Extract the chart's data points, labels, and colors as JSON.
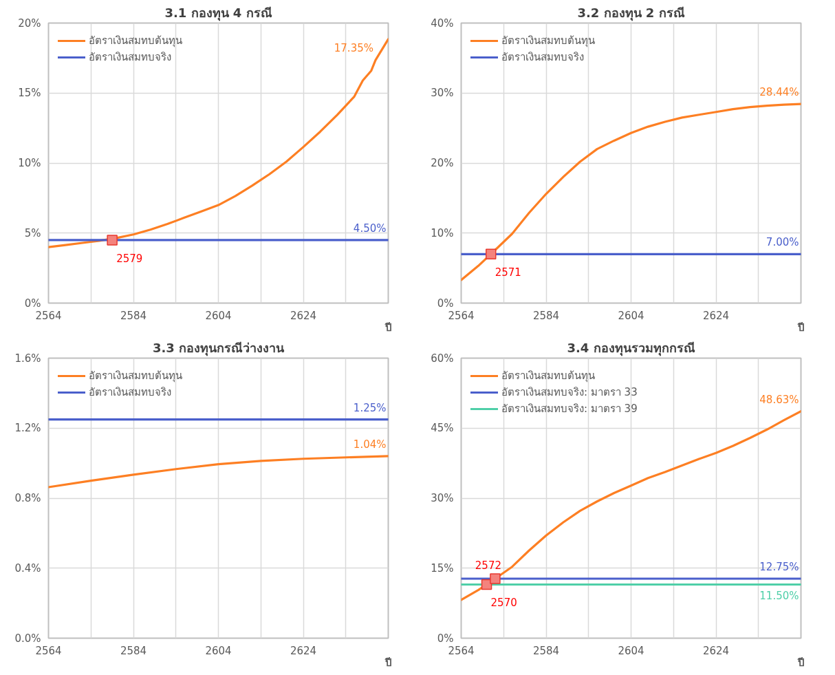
{
  "chart_data": [
    {
      "type": "line",
      "title": "3.1 กองทุน 4 กรณี",
      "xlabel": "ปี",
      "xlim": [
        2564,
        2644
      ],
      "ylim": [
        0,
        20
      ],
      "xticks": [
        2564,
        {
          "value": 2574,
          "label": null
        },
        2584,
        {
          "value": 2594,
          "label": null
        },
        2604,
        {
          "value": 2614,
          "label": null
        },
        2624,
        {
          "value": 2634,
          "label": null
        },
        {
          "value": 2644,
          "label": null
        }
      ],
      "yticks": [
        {
          "value": 0,
          "label": "0%"
        },
        {
          "value": 5,
          "label": "5%"
        },
        {
          "value": 10,
          "label": "10%"
        },
        {
          "value": 15,
          "label": "15%"
        },
        {
          "value": 20,
          "label": "20%"
        }
      ],
      "grid": true,
      "legend": "top left",
      "series": [
        {
          "name": "อัตราเงินสมทบต้นทุน",
          "color": "#fd7f23",
          "x": [
            2564,
            2568,
            2572,
            2576,
            2580,
            2584,
            2588,
            2592,
            2596,
            2600,
            2604,
            2608,
            2612,
            2616,
            2620,
            2624,
            2628,
            2632,
            2636,
            2638,
            2640,
            2641,
            2644
          ],
          "values": [
            4.0,
            4.15,
            4.3,
            4.45,
            4.65,
            4.9,
            5.25,
            5.65,
            6.1,
            6.55,
            7.0,
            7.65,
            8.4,
            9.2,
            10.1,
            11.15,
            12.25,
            13.45,
            14.75,
            15.9,
            16.6,
            17.35,
            18.85
          ],
          "value_labels": [
            null,
            null,
            null,
            null,
            null,
            null,
            null,
            null,
            null,
            null,
            null,
            null,
            null,
            null,
            null,
            null,
            null,
            null,
            null,
            null,
            null,
            "17.35%",
            null
          ]
        },
        {
          "name": "อัตราเงินสมทบจริง",
          "color": "#4a5fcb",
          "x": [
            2564,
            2644
          ],
          "values": [
            4.5,
            4.5
          ],
          "value_labels": [
            null,
            "4.50%"
          ]
        },
        {
          "type": "scatter",
          "marker": "square",
          "color": "#f4837d",
          "x": [
            2579
          ],
          "values": [
            4.5
          ]
        }
      ],
      "annotations": [
        {
          "text": "2579",
          "x": 2579,
          "y": 4.5
        }
      ]
    },
    {
      "type": "line",
      "title": "3.2 กองทุน 2 กรณี",
      "xlabel": "ปี",
      "xlim": [
        2564,
        2644
      ],
      "ylim": [
        0,
        40
      ],
      "xticks": [
        2564,
        {
          "value": 2574,
          "label": null
        },
        2584,
        {
          "value": 2594,
          "label": null
        },
        2604,
        {
          "value": 2614,
          "label": null
        },
        2624,
        {
          "value": 2634,
          "label": null
        },
        {
          "value": 2644,
          "label": null
        }
      ],
      "yticks": [
        {
          "value": 0,
          "label": "0%"
        },
        {
          "value": 10,
          "label": "10%"
        },
        {
          "value": 20,
          "label": "20%"
        },
        {
          "value": 30,
          "label": "30%"
        },
        {
          "value": 40,
          "label": "40%"
        }
      ],
      "grid": true,
      "legend": "top left",
      "series": [
        {
          "name": "อัตราเงินสมทบต้นทุน",
          "color": "#fd7f23",
          "x": [
            2564,
            2568,
            2571,
            2576,
            2580,
            2584,
            2588,
            2592,
            2596,
            2600,
            2604,
            2608,
            2612,
            2616,
            2620,
            2624,
            2628,
            2632,
            2636,
            2640,
            2644
          ],
          "values": [
            3.3,
            5.3,
            7.0,
            9.9,
            12.9,
            15.6,
            18.0,
            20.2,
            22.0,
            23.2,
            24.3,
            25.2,
            25.9,
            26.5,
            26.9,
            27.3,
            27.7,
            28.0,
            28.2,
            28.35,
            28.44
          ],
          "value_labels": [
            null,
            null,
            null,
            null,
            null,
            null,
            null,
            null,
            null,
            null,
            null,
            null,
            null,
            null,
            null,
            null,
            null,
            null,
            null,
            null,
            "28.44%"
          ]
        },
        {
          "name": "อัตราเงินสมทบจริง",
          "color": "#4a5fcb",
          "x": [
            2564,
            2644
          ],
          "values": [
            7.0,
            7.0
          ],
          "value_labels": [
            null,
            "7.00%"
          ]
        },
        {
          "type": "scatter",
          "marker": "square",
          "color": "#f4837d",
          "x": [
            2571
          ],
          "values": [
            7.0
          ]
        }
      ],
      "annotations": [
        {
          "text": "2571",
          "x": 2571,
          "y": 7.0
        }
      ]
    },
    {
      "type": "line",
      "title": "3.3 กองทุนกรณีว่างงาน",
      "xlabel": "ปี",
      "xlim": [
        2564,
        2644
      ],
      "ylim": [
        0,
        1.6
      ],
      "xticks": [
        2564,
        {
          "value": 2574,
          "label": null
        },
        2584,
        {
          "value": 2594,
          "label": null
        },
        2604,
        {
          "value": 2614,
          "label": null
        },
        2624,
        {
          "value": 2634,
          "label": null
        },
        {
          "value": 2644,
          "label": null
        }
      ],
      "yticks": [
        {
          "value": 0,
          "label": "0.0%"
        },
        {
          "value": 0.4,
          "label": "0.4%"
        },
        {
          "value": 0.8,
          "label": "0.8%"
        },
        {
          "value": 1.2,
          "label": "1.2%"
        },
        {
          "value": 1.6,
          "label": "1.6%"
        }
      ],
      "grid": true,
      "legend": "top left",
      "series": [
        {
          "name": "อัตราเงินสมทบต้นทุน",
          "color": "#fd7f23",
          "x": [
            2564,
            2574,
            2584,
            2594,
            2604,
            2614,
            2624,
            2634,
            2644
          ],
          "values": [
            0.863,
            0.9,
            0.934,
            0.966,
            0.994,
            1.013,
            1.025,
            1.033,
            1.04
          ],
          "value_labels": [
            null,
            null,
            null,
            null,
            null,
            null,
            null,
            null,
            "1.04%"
          ]
        },
        {
          "name": "อัตราเงินสมทบจริง",
          "color": "#4a5fcb",
          "x": [
            2564,
            2644
          ],
          "values": [
            1.25,
            1.25
          ],
          "value_labels": [
            null,
            "1.25%"
          ]
        }
      ]
    },
    {
      "type": "line",
      "title": "3.4 กองทุนรวมทุกกรณี",
      "xlabel": "ปี",
      "xlim": [
        2564,
        2644
      ],
      "ylim": [
        0,
        60
      ],
      "xticks": [
        2564,
        {
          "value": 2574,
          "label": null
        },
        2584,
        {
          "value": 2594,
          "label": null
        },
        2604,
        {
          "value": 2614,
          "label": null
        },
        2624,
        {
          "value": 2634,
          "label": null
        },
        {
          "value": 2644,
          "label": null
        }
      ],
      "yticks": [
        {
          "value": 0,
          "label": "0%"
        },
        {
          "value": 15,
          "label": "15%"
        },
        {
          "value": 30,
          "label": "30%"
        },
        {
          "value": 45,
          "label": "45%"
        },
        {
          "value": 60,
          "label": "60%"
        }
      ],
      "grid": true,
      "legend": "top left",
      "series": [
        {
          "name": "อัตราเงินสมทบต้นทุน",
          "color": "#fd7f23",
          "x": [
            2564,
            2568,
            2570,
            2572,
            2576,
            2580,
            2584,
            2588,
            2592,
            2596,
            2600,
            2604,
            2608,
            2612,
            2616,
            2620,
            2624,
            2628,
            2632,
            2636,
            2640,
            2644
          ],
          "values": [
            8.2,
            10.3,
            11.5,
            12.75,
            15.3,
            18.8,
            22.0,
            24.8,
            27.3,
            29.3,
            31.1,
            32.7,
            34.3,
            35.6,
            37.0,
            38.4,
            39.7,
            41.2,
            42.9,
            44.7,
            46.7,
            48.63
          ],
          "value_labels": [
            null,
            null,
            null,
            null,
            null,
            null,
            null,
            null,
            null,
            null,
            null,
            null,
            null,
            null,
            null,
            null,
            null,
            null,
            null,
            null,
            null,
            "48.63%"
          ]
        },
        {
          "name": "อัตราเงินสมทบจริง: มาตรา 33",
          "color": "#4a5fcb",
          "x": [
            2564,
            2644
          ],
          "values": [
            12.75,
            12.75
          ],
          "value_labels": [
            null,
            "12.75%"
          ]
        },
        {
          "name": "อัตราเงินสมทบจริง: มาตรา 39",
          "color": "#4fcfa8",
          "x": [
            2564,
            2644
          ],
          "values": [
            11.5,
            11.5
          ],
          "value_labels": [
            null,
            "11.50%"
          ]
        },
        {
          "type": "scatter",
          "marker": "square",
          "color": "#f4837d",
          "x": [
            2570,
            2572
          ],
          "values": [
            11.5,
            12.75
          ]
        }
      ],
      "annotations": [
        {
          "text": "2570",
          "x": 2570,
          "y": 11.5
        },
        {
          "text": "2572",
          "x": 2572,
          "y": 12.75
        }
      ]
    }
  ]
}
